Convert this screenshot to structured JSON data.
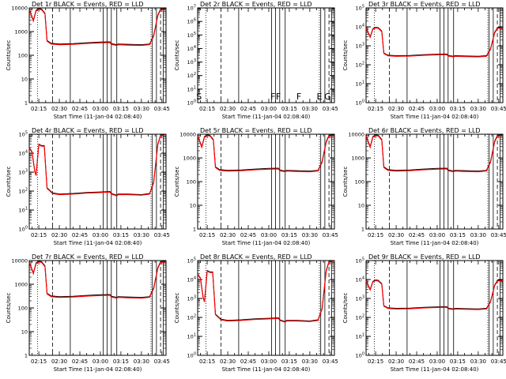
{
  "colors": {
    "events": "#000000",
    "lld": "#ff0000",
    "axis": "#000000",
    "background": "#ffffff"
  },
  "shared": {
    "ylabel": "Counts/sec",
    "xlabel": "Start Time (11-Jan-04 02:08:40)",
    "xticks": [
      "02:15",
      "02:30",
      "02:45",
      "03:00",
      "03:15",
      "03:30",
      "03:45"
    ]
  },
  "chart_data": [
    {
      "type": "line",
      "title": "Det 1r BLACK = Events, RED = LLD",
      "yscale": "log",
      "ylim": [
        1,
        10000
      ],
      "yticks": [
        "1",
        "10",
        "100",
        "1000",
        "10000"
      ],
      "yticks_style": "plain",
      "profile": "A",
      "series": [
        {
          "name": "Events"
        },
        {
          "name": "LLD"
        }
      ],
      "annotations": []
    },
    {
      "type": "line",
      "title": "Det 2r BLACK = Events, RED = LLD",
      "yscale": "log",
      "ylim": [
        1,
        10000000
      ],
      "yticks": [
        "10^0",
        "10^1",
        "10^2",
        "10^3",
        "10^4",
        "10^5",
        "10^6",
        "10^7"
      ],
      "yticks_style": "exp",
      "profile": "none",
      "series": [],
      "annotations": [
        "S",
        "F",
        "F",
        "F",
        "E",
        "G"
      ]
    },
    {
      "type": "line",
      "title": "Det 3r BLACK = Events, RED = LLD",
      "yscale": "log",
      "ylim": [
        1,
        100000
      ],
      "yticks": [
        "10^0",
        "10^1",
        "10^2",
        "10^3",
        "10^4",
        "10^5"
      ],
      "yticks_style": "exp",
      "profile": "A",
      "series": [
        {
          "name": "Events"
        },
        {
          "name": "LLD"
        }
      ],
      "annotations": []
    },
    {
      "type": "line",
      "title": "Det 4r BLACK = Events, RED = LLD",
      "yscale": "log",
      "ylim": [
        1,
        100000
      ],
      "yticks": [
        "10^0",
        "10^1",
        "10^2",
        "10^3",
        "10^4",
        "10^5"
      ],
      "yticks_style": "exp",
      "profile": "B",
      "series": [
        {
          "name": "Events"
        },
        {
          "name": "LLD"
        }
      ],
      "annotations": []
    },
    {
      "type": "line",
      "title": "Det 5r BLACK = Events, RED = LLD",
      "yscale": "log",
      "ylim": [
        1,
        10000
      ],
      "yticks": [
        "1",
        "10",
        "100",
        "1000",
        "10000"
      ],
      "yticks_style": "plain",
      "profile": "A",
      "series": [
        {
          "name": "Events"
        },
        {
          "name": "LLD"
        }
      ],
      "annotations": []
    },
    {
      "type": "line",
      "title": "Det 6r BLACK = Events, RED = LLD",
      "yscale": "log",
      "ylim": [
        1,
        10000
      ],
      "yticks": [
        "1",
        "10",
        "100",
        "1000",
        "10000"
      ],
      "yticks_style": "plain",
      "profile": "A",
      "series": [
        {
          "name": "Events"
        },
        {
          "name": "LLD"
        }
      ],
      "annotations": []
    },
    {
      "type": "line",
      "title": "Det 7r BLACK = Events, RED = LLD",
      "yscale": "log",
      "ylim": [
        1,
        10000
      ],
      "yticks": [
        "1",
        "10",
        "100",
        "1000",
        "10000"
      ],
      "yticks_style": "plain",
      "profile": "A",
      "series": [
        {
          "name": "Events"
        },
        {
          "name": "LLD"
        }
      ],
      "annotations": []
    },
    {
      "type": "line",
      "title": "Det 8r BLACK = Events, RED = LLD",
      "yscale": "log",
      "ylim": [
        1,
        100000
      ],
      "yticks": [
        "10^0",
        "10^1",
        "10^2",
        "10^3",
        "10^4",
        "10^5"
      ],
      "yticks_style": "exp",
      "profile": "B",
      "series": [
        {
          "name": "Events"
        },
        {
          "name": "LLD"
        }
      ],
      "annotations": []
    },
    {
      "type": "line",
      "title": "Det 9r BLACK = Events, RED = LLD",
      "yscale": "log",
      "ylim": [
        1,
        100000
      ],
      "yticks": [
        "10^0",
        "10^1",
        "10^2",
        "10^3",
        "10^4",
        "10^5"
      ],
      "yticks_style": "exp",
      "profile": "A",
      "series": [
        {
          "name": "Events"
        },
        {
          "name": "LLD"
        }
      ],
      "annotations": []
    }
  ]
}
